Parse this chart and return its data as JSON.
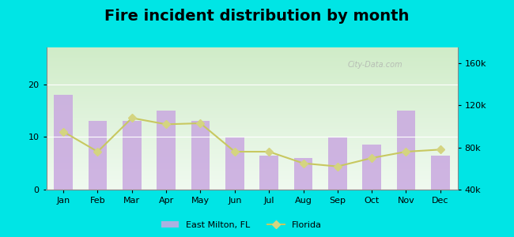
{
  "title": "Fire incident distribution by month",
  "months": [
    "Jan",
    "Feb",
    "Mar",
    "Apr",
    "May",
    "Jun",
    "Jul",
    "Aug",
    "Sep",
    "Oct",
    "Nov",
    "Dec"
  ],
  "east_milton_values": [
    18,
    13,
    13,
    15,
    13,
    10,
    6.5,
    6,
    10,
    8.5,
    15,
    6.5
  ],
  "florida_values": [
    95000,
    76000,
    108000,
    102000,
    103000,
    76000,
    76000,
    65000,
    62000,
    70000,
    76000,
    78000
  ],
  "bar_color": "#c9a8e0",
  "bar_alpha": 0.85,
  "line_color": "#c8c860",
  "line_marker": "D",
  "line_marker_color": "#d4d480",
  "outer_bg": "#00e5e5",
  "title_fontsize": 14,
  "ylim_left": [
    0,
    27
  ],
  "ylim_right": [
    40000,
    175000
  ],
  "yticks_left": [
    0,
    10,
    20
  ],
  "yticks_right": [
    40000,
    80000,
    120000,
    160000
  ],
  "legend_label_1": "East Milton, FL",
  "legend_label_2": "Florida",
  "watermark": "City-Data.com",
  "grad_top": "#d0ecc8",
  "grad_bottom": "#f0faf0"
}
